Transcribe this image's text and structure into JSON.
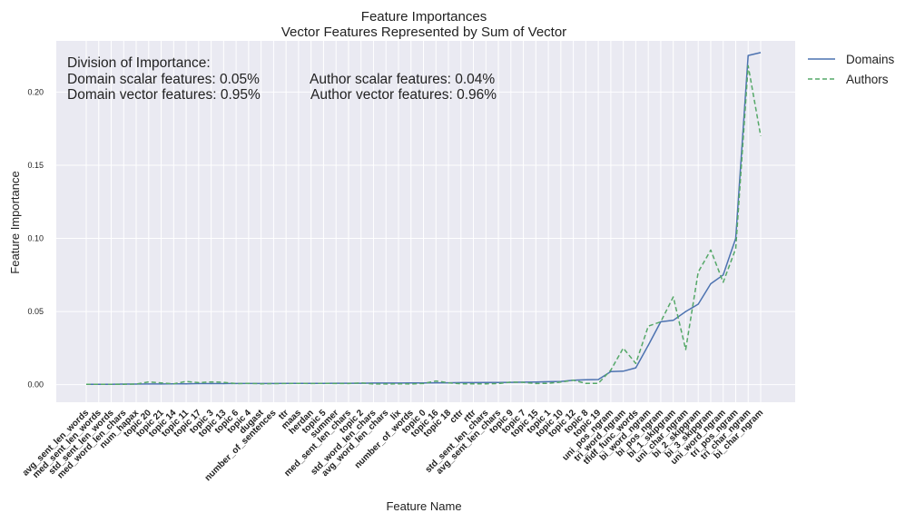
{
  "chart_data": {
    "type": "line",
    "title": "Feature Importances",
    "subtitle": "Vector Features Represented by Sum of Vector",
    "xlabel": "Feature Name",
    "ylabel": "Feature Importance",
    "ylim": [
      -0.012,
      0.235
    ],
    "yticks": [
      0.0,
      0.05,
      0.1,
      0.15,
      0.2
    ],
    "ytick_labels": [
      "0.00",
      "0.05",
      "0.10",
      "0.15",
      "0.20"
    ],
    "grid": true,
    "legend_position": "outside-top-right",
    "categories": [
      "avg_sent_len_words",
      "med_sent_len_words",
      "std_sent_len_words",
      "med_word_len_chars",
      "num_hapax",
      "topic 20",
      "topic 21",
      "topic 14",
      "topic 11",
      "topic 17",
      "topic 3",
      "topic 13",
      "topic 6",
      "topic 4",
      "dugast",
      "number_of_sentences",
      "ttr",
      "maas",
      "herdan",
      "topic 5",
      "summer",
      "med_sent_len_chars",
      "topic 2",
      "std_word_len_chars",
      "avg_word_len_chars",
      "lix",
      "number_of_words",
      "topic 0",
      "topic 16",
      "topic 18",
      "cttr",
      "rttr",
      "std_sent_len_chars",
      "avg_sent_len_chars",
      "topic 9",
      "topic 7",
      "topic 15",
      "topic 1",
      "topic 10",
      "topic 12",
      "topic 8",
      "topic 19",
      "uni_pos_ngram",
      "tri_word_ngram",
      "tfidf_func_words",
      "bi_word_ngram",
      "bi_pos_ngram",
      "bi_1_skipgram",
      "uni_char_ngram",
      "bi_2_skipgram",
      "bi_3_skipgram",
      "uni_word_ngram",
      "tri_pos_ngram",
      "tri_char_ngram",
      "bi_char_ngram"
    ],
    "series": [
      {
        "name": "Domains",
        "color": "#4c72b0",
        "style": "solid",
        "values": [
          0.0002,
          0.0002,
          0.0003,
          0.0004,
          0.0004,
          0.0005,
          0.0005,
          0.0006,
          0.0006,
          0.0007,
          0.0007,
          0.0007,
          0.0008,
          0.0008,
          0.0008,
          0.0008,
          0.0009,
          0.0009,
          0.0009,
          0.0009,
          0.001,
          0.001,
          0.001,
          0.0011,
          0.0011,
          0.0011,
          0.0012,
          0.0012,
          0.0013,
          0.0013,
          0.0014,
          0.0014,
          0.0015,
          0.0015,
          0.0016,
          0.0017,
          0.0018,
          0.002,
          0.0022,
          0.003,
          0.0033,
          0.0035,
          0.009,
          0.0092,
          0.0115,
          0.027,
          0.043,
          0.044,
          0.05,
          0.055,
          0.069,
          0.075,
          0.1,
          0.225,
          0.227
        ]
      },
      {
        "name": "Authors",
        "color": "#55a868",
        "style": "dashed",
        "values": [
          0.0002,
          0.0002,
          0.0003,
          0.0003,
          0.0004,
          0.0019,
          0.0012,
          0.0006,
          0.0022,
          0.0014,
          0.0019,
          0.0016,
          0.0007,
          0.0009,
          0.0006,
          0.0007,
          0.0008,
          0.0009,
          0.0008,
          0.0009,
          0.0008,
          0.0008,
          0.0012,
          0.0005,
          0.0005,
          0.0006,
          0.0005,
          0.0008,
          0.0025,
          0.0013,
          0.0006,
          0.0006,
          0.0006,
          0.0007,
          0.0018,
          0.0016,
          0.0008,
          0.0009,
          0.0018,
          0.0031,
          0.0009,
          0.0009,
          0.01,
          0.025,
          0.0145,
          0.04,
          0.043,
          0.06,
          0.024,
          0.077,
          0.092,
          0.07,
          0.093,
          0.218,
          0.17
        ]
      }
    ],
    "annotations": {
      "heading": "Division of Importance:",
      "domain_scalar": "Domain scalar features: 0.05%",
      "author_scalar": "Author scalar features: 0.04%",
      "domain_vector": "Domain vector features: 0.95%",
      "author_vector": "Author vector features: 0.96%"
    }
  }
}
